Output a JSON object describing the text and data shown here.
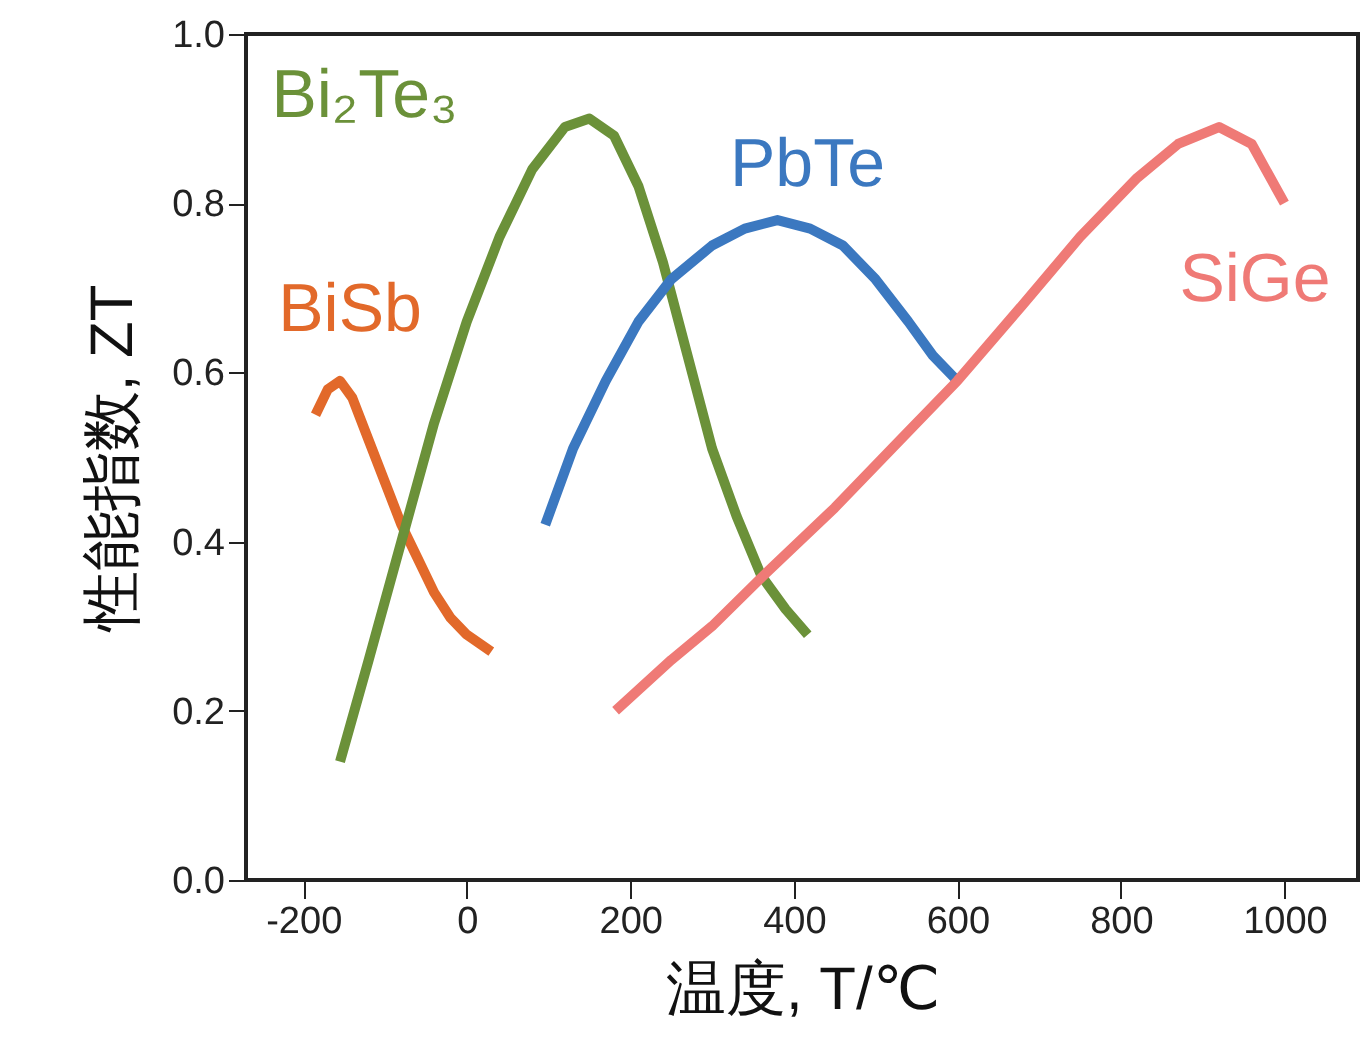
{
  "chart_data": {
    "type": "line",
    "xlabel": "温度, T/℃",
    "ylabel": "性能指数, ZT",
    "xlim": [
      -270,
      1090
    ],
    "xticks": [
      -200,
      0,
      200,
      400,
      600,
      800,
      1000
    ],
    "ylim": [
      0,
      1
    ],
    "yticks": [
      {
        "value": 0,
        "label": "0.0"
      },
      {
        "value": 0.2,
        "label": "0.2"
      },
      {
        "value": 0.4,
        "label": "0.4"
      },
      {
        "value": 0.6,
        "label": "0.6"
      },
      {
        "value": 0.8,
        "label": "0.8"
      },
      {
        "value": 1,
        "label": "1.0"
      }
    ],
    "grid": false,
    "legend": false,
    "marker": "none",
    "line_style": "solid",
    "series": [
      {
        "name": "BiSb",
        "color": "#e2692a",
        "x": [
          -185,
          -170,
          -155,
          -140,
          -120,
          -100,
          -80,
          -60,
          -40,
          -20,
          0,
          30
        ],
        "values": [
          0.55,
          0.58,
          0.59,
          0.57,
          0.52,
          0.47,
          0.42,
          0.38,
          0.34,
          0.31,
          0.29,
          0.27
        ]
      },
      {
        "name": "Bi₂Te₃",
        "color": "#6b9139",
        "x": [
          -155,
          -120,
          -80,
          -40,
          0,
          40,
          80,
          120,
          150,
          180,
          210,
          240,
          270,
          300,
          330,
          360,
          390,
          417
        ],
        "values": [
          0.14,
          0.26,
          0.4,
          0.54,
          0.66,
          0.76,
          0.84,
          0.89,
          0.9,
          0.88,
          0.82,
          0.73,
          0.62,
          0.51,
          0.43,
          0.36,
          0.32,
          0.29
        ]
      },
      {
        "name": "PbTe",
        "color": "#3b78c0",
        "x": [
          96,
          130,
          170,
          210,
          250,
          300,
          340,
          380,
          420,
          460,
          500,
          540,
          570,
          600
        ],
        "values": [
          0.42,
          0.51,
          0.59,
          0.66,
          0.71,
          0.75,
          0.77,
          0.78,
          0.77,
          0.75,
          0.71,
          0.66,
          0.62,
          0.59
        ]
      },
      {
        "name": "SiGe",
        "color": "#ef7a76",
        "x": [
          182,
          250,
          300,
          363,
          450,
          530,
          600,
          680,
          750,
          820,
          870,
          920,
          960,
          1000
        ],
        "values": [
          0.2,
          0.26,
          0.3,
          0.36,
          0.44,
          0.52,
          0.59,
          0.68,
          0.76,
          0.83,
          0.87,
          0.89,
          0.87,
          0.8
        ]
      }
    ]
  }
}
